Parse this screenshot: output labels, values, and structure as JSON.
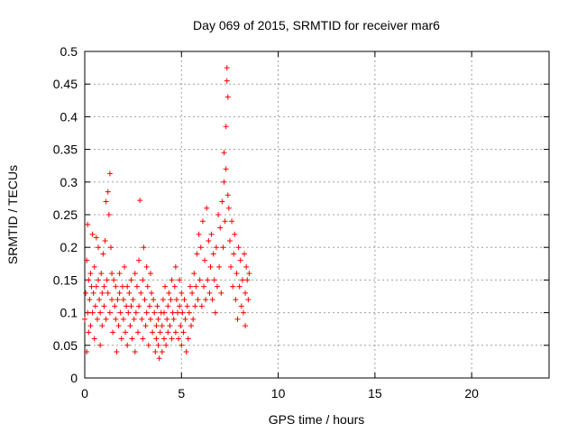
{
  "chart_data": {
    "type": "scatter",
    "title": "Day 069 of 2015, SRMTID for receiver mar6",
    "xlabel": "GPS time / hours",
    "ylabel": "SRMTID / TECUs",
    "xlim": [
      0,
      24
    ],
    "ylim": [
      0,
      0.5
    ],
    "xticks": [
      0,
      5,
      10,
      15,
      20
    ],
    "xtick_labels": [
      "0",
      "5",
      "10",
      "15",
      "20"
    ],
    "yticks": [
      0,
      0.05,
      0.1,
      0.15,
      0.2,
      0.25,
      0.3,
      0.35,
      0.4,
      0.45,
      0.5
    ],
    "ytick_labels": [
      "0",
      "0.05",
      "0.1",
      "0.15",
      "0.2",
      "0.25",
      "0.3",
      "0.35",
      "0.4",
      "0.45",
      "0.5"
    ],
    "grid": true,
    "marker": "plus",
    "color": "#ff0000",
    "series": [
      {
        "name": "SRMTID",
        "points": [
          [
            0.0,
            0.09
          ],
          [
            0.05,
            0.13
          ],
          [
            0.1,
            0.18
          ],
          [
            0.1,
            0.04
          ],
          [
            0.15,
            0.235
          ],
          [
            0.15,
            0.1
          ],
          [
            0.2,
            0.07
          ],
          [
            0.2,
            0.15
          ],
          [
            0.25,
            0.12
          ],
          [
            0.3,
            0.08
          ],
          [
            0.3,
            0.16
          ],
          [
            0.35,
            0.14
          ],
          [
            0.4,
            0.22
          ],
          [
            0.4,
            0.1
          ],
          [
            0.45,
            0.13
          ],
          [
            0.5,
            0.06
          ],
          [
            0.5,
            0.17
          ],
          [
            0.55,
            0.11
          ],
          [
            0.6,
            0.215
          ],
          [
            0.6,
            0.14
          ],
          [
            0.65,
            0.09
          ],
          [
            0.7,
            0.15
          ],
          [
            0.7,
            0.2
          ],
          [
            0.75,
            0.12
          ],
          [
            0.8,
            0.05
          ],
          [
            0.8,
            0.1
          ],
          [
            0.85,
            0.16
          ],
          [
            0.9,
            0.13
          ],
          [
            0.9,
            0.08
          ],
          [
            0.95,
            0.19
          ],
          [
            1.0,
            0.14
          ],
          [
            1.0,
            0.11
          ],
          [
            1.05,
            0.21
          ],
          [
            1.1,
            0.27
          ],
          [
            1.1,
            0.09
          ],
          [
            1.15,
            0.15
          ],
          [
            1.2,
            0.285
          ],
          [
            1.2,
            0.13
          ],
          [
            1.25,
            0.25
          ],
          [
            1.3,
            0.313
          ],
          [
            1.3,
            0.1
          ],
          [
            1.35,
            0.2
          ],
          [
            1.4,
            0.16
          ],
          [
            1.4,
            0.12
          ],
          [
            1.45,
            0.07
          ],
          [
            1.5,
            0.15
          ],
          [
            1.55,
            0.11
          ],
          [
            1.6,
            0.09
          ],
          [
            1.6,
            0.14
          ],
          [
            1.65,
            0.04
          ],
          [
            1.7,
            0.12
          ],
          [
            1.75,
            0.08
          ],
          [
            1.8,
            0.13
          ],
          [
            1.8,
            0.16
          ],
          [
            1.85,
            0.1
          ],
          [
            1.9,
            0.06
          ],
          [
            1.95,
            0.14
          ],
          [
            2.0,
            0.09
          ],
          [
            2.0,
            0.12
          ],
          [
            2.05,
            0.17
          ],
          [
            2.1,
            0.07
          ],
          [
            2.15,
            0.11
          ],
          [
            2.2,
            0.14
          ],
          [
            2.2,
            0.05
          ],
          [
            2.25,
            0.1
          ],
          [
            2.3,
            0.13
          ],
          [
            2.35,
            0.08
          ],
          [
            2.4,
            0.15
          ],
          [
            2.4,
            0.11
          ],
          [
            2.45,
            0.06
          ],
          [
            2.5,
            0.12
          ],
          [
            2.55,
            0.09
          ],
          [
            2.6,
            0.16
          ],
          [
            2.6,
            0.04
          ],
          [
            2.65,
            0.1
          ],
          [
            2.7,
            0.14
          ],
          [
            2.75,
            0.07
          ],
          [
            2.8,
            0.18
          ],
          [
            2.8,
            0.11
          ],
          [
            2.85,
            0.272
          ],
          [
            2.9,
            0.13
          ],
          [
            2.95,
            0.09
          ],
          [
            3.0,
            0.15
          ],
          [
            3.0,
            0.06
          ],
          [
            3.05,
            0.2
          ],
          [
            3.1,
            0.12
          ],
          [
            3.15,
            0.08
          ],
          [
            3.2,
            0.17
          ],
          [
            3.2,
            0.1
          ],
          [
            3.25,
            0.14
          ],
          [
            3.3,
            0.05
          ],
          [
            3.35,
            0.11
          ],
          [
            3.4,
            0.16
          ],
          [
            3.4,
            0.09
          ],
          [
            3.45,
            0.13
          ],
          [
            3.5,
            0.07
          ],
          [
            3.55,
            0.12
          ],
          [
            3.6,
            0.1
          ],
          [
            3.65,
            0.04
          ],
          [
            3.7,
            0.08
          ],
          [
            3.7,
            0.06
          ],
          [
            3.75,
            0.11
          ],
          [
            3.8,
            0.05
          ],
          [
            3.8,
            0.09
          ],
          [
            3.85,
            0.03
          ],
          [
            3.9,
            0.07
          ],
          [
            3.95,
            0.1
          ],
          [
            4.0,
            0.04
          ],
          [
            4.0,
            0.08
          ],
          [
            4.05,
            0.12
          ],
          [
            4.1,
            0.06
          ],
          [
            4.1,
            0.1
          ],
          [
            4.15,
            0.14
          ],
          [
            4.2,
            0.05
          ],
          [
            4.25,
            0.09
          ],
          [
            4.3,
            0.11
          ],
          [
            4.3,
            0.07
          ],
          [
            4.35,
            0.13
          ],
          [
            4.4,
            0.08
          ],
          [
            4.45,
            0.12
          ],
          [
            4.5,
            0.06
          ],
          [
            4.5,
            0.15
          ],
          [
            4.55,
            0.1
          ],
          [
            4.6,
            0.09
          ],
          [
            4.65,
            0.14
          ],
          [
            4.7,
            0.17
          ],
          [
            4.7,
            0.07
          ],
          [
            4.75,
            0.12
          ],
          [
            4.8,
            0.1
          ],
          [
            4.85,
            0.06
          ],
          [
            4.9,
            0.15
          ],
          [
            4.9,
            0.11
          ],
          [
            4.95,
            0.08
          ],
          [
            5.0,
            0.13
          ],
          [
            5.0,
            0.05
          ],
          [
            5.05,
            0.1
          ],
          [
            5.1,
            0.07
          ],
          [
            5.15,
            0.12
          ],
          [
            5.2,
            0.09
          ],
          [
            5.25,
            0.04
          ],
          [
            5.3,
            0.11
          ],
          [
            5.35,
            0.06
          ],
          [
            5.4,
            0.1
          ],
          [
            5.45,
            0.14
          ],
          [
            5.5,
            0.08
          ],
          [
            5.55,
            0.13
          ],
          [
            5.6,
            0.09
          ],
          [
            5.65,
            0.16
          ],
          [
            5.7,
            0.11
          ],
          [
            5.75,
            0.14
          ],
          [
            5.8,
            0.19
          ],
          [
            5.85,
            0.12
          ],
          [
            5.9,
            0.22
          ],
          [
            5.95,
            0.15
          ],
          [
            6.0,
            0.2
          ],
          [
            6.05,
            0.11
          ],
          [
            6.1,
            0.24
          ],
          [
            6.15,
            0.14
          ],
          [
            6.2,
            0.18
          ],
          [
            6.25,
            0.12
          ],
          [
            6.3,
            0.26
          ],
          [
            6.35,
            0.15
          ],
          [
            6.4,
            0.21
          ],
          [
            6.45,
            0.13
          ],
          [
            6.5,
            0.17
          ],
          [
            6.55,
            0.22
          ],
          [
            6.6,
            0.12
          ],
          [
            6.65,
            0.19
          ],
          [
            6.7,
            0.15
          ],
          [
            6.75,
            0.1
          ],
          [
            6.8,
            0.2
          ],
          [
            6.85,
            0.14
          ],
          [
            6.9,
            0.25
          ],
          [
            6.95,
            0.17
          ],
          [
            7.0,
            0.23
          ],
          [
            7.05,
            0.13
          ],
          [
            7.1,
            0.27
          ],
          [
            7.15,
            0.2
          ],
          [
            7.2,
            0.3
          ],
          [
            7.2,
            0.345
          ],
          [
            7.25,
            0.24
          ],
          [
            7.3,
            0.385
          ],
          [
            7.3,
            0.32
          ],
          [
            7.35,
            0.475
          ],
          [
            7.35,
            0.455
          ],
          [
            7.4,
            0.43
          ],
          [
            7.4,
            0.28
          ],
          [
            7.45,
            0.26
          ],
          [
            7.5,
            0.21
          ],
          [
            7.55,
            0.17
          ],
          [
            7.6,
            0.24
          ],
          [
            7.65,
            0.14
          ],
          [
            7.7,
            0.19
          ],
          [
            7.75,
            0.22
          ],
          [
            7.8,
            0.12
          ],
          [
            7.85,
            0.16
          ],
          [
            7.9,
            0.09
          ],
          [
            7.95,
            0.2
          ],
          [
            8.0,
            0.14
          ],
          [
            8.05,
            0.18
          ],
          [
            8.1,
            0.11
          ],
          [
            8.15,
            0.15
          ],
          [
            8.2,
            0.1
          ],
          [
            8.25,
            0.19
          ],
          [
            8.3,
            0.13
          ],
          [
            8.3,
            0.08
          ],
          [
            8.35,
            0.17
          ],
          [
            8.4,
            0.15
          ],
          [
            8.45,
            0.12
          ],
          [
            8.5,
            0.16
          ]
        ]
      }
    ]
  }
}
